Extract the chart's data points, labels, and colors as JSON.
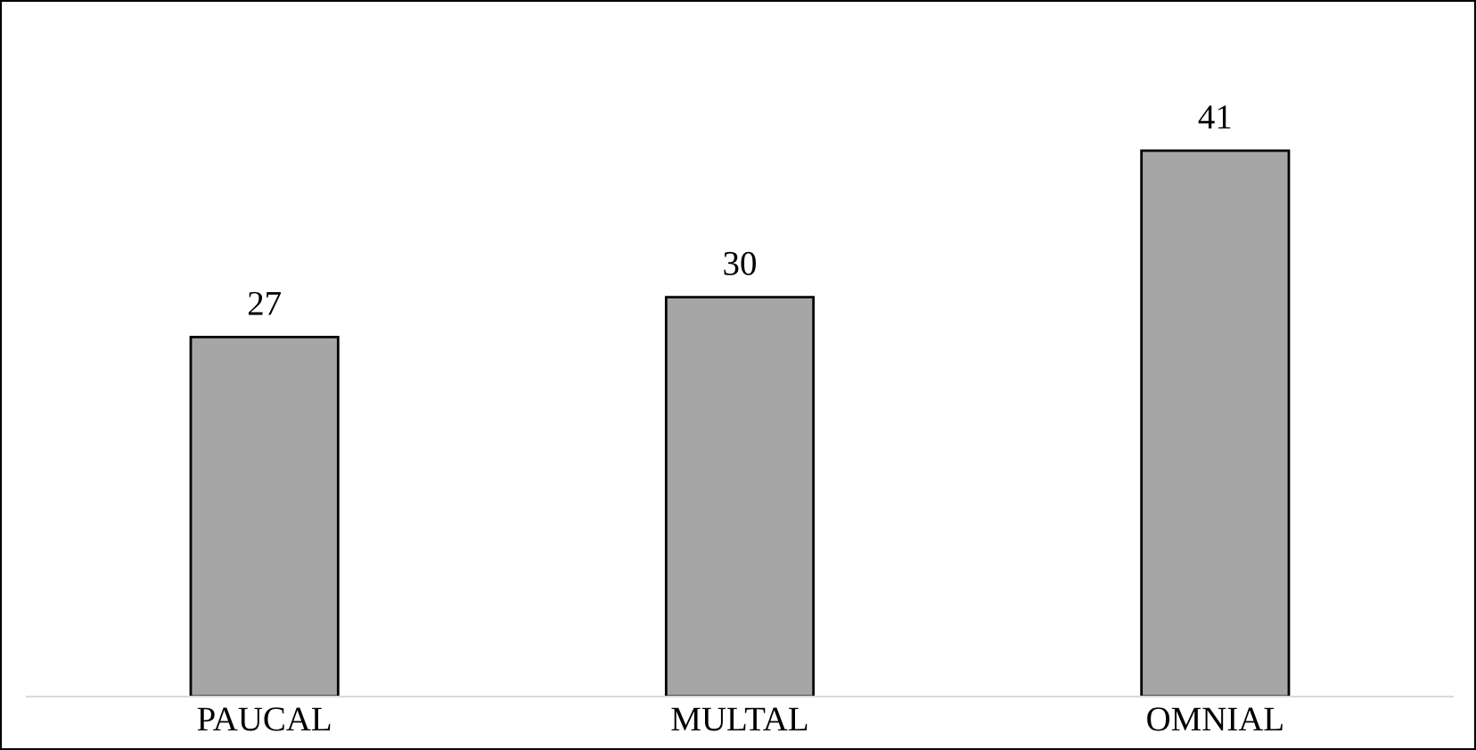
{
  "chart_data": {
    "type": "bar",
    "categories": [
      "PAUCAL",
      "MULTAL",
      "OMNIAL"
    ],
    "values": [
      27,
      30,
      41
    ],
    "color": "#a6a6a6",
    "data_labels": true,
    "grid": false,
    "legend": false
  }
}
